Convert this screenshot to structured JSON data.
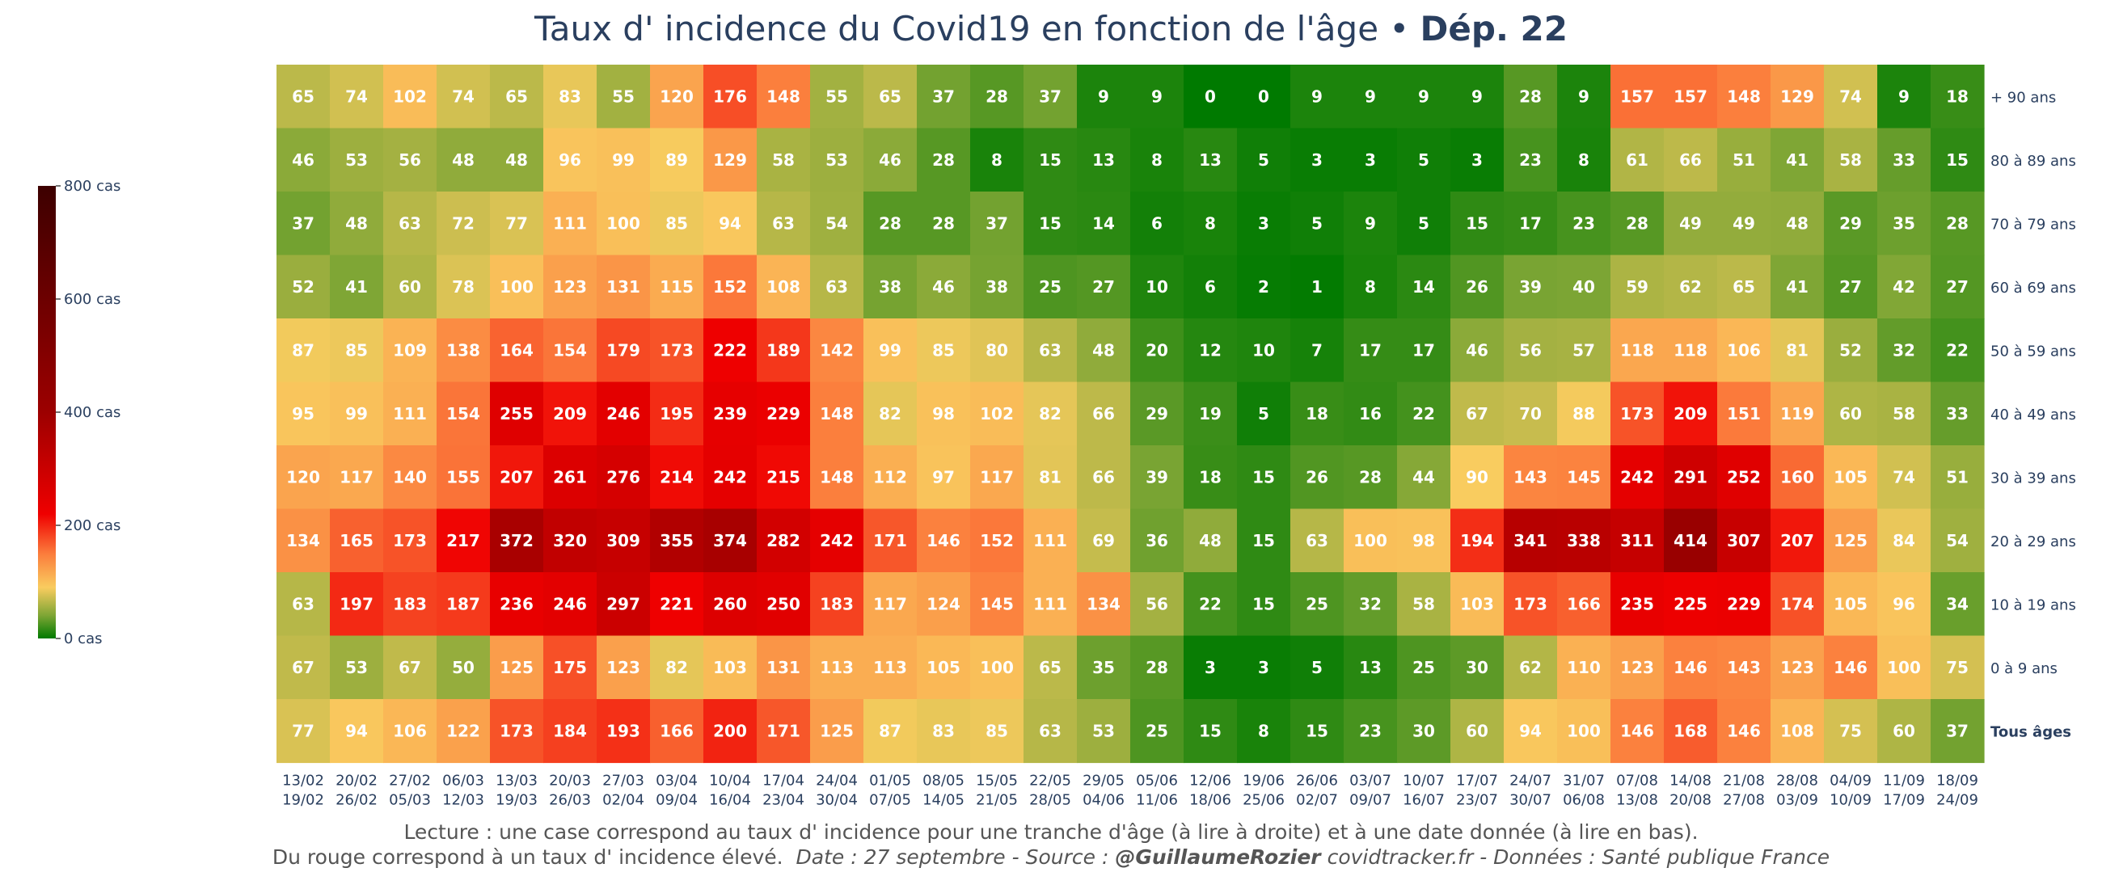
{
  "title": {
    "main": "Taux d' incidence du Covid19 en fonction de l'âge",
    "separator": "•",
    "department": "Dép. 22"
  },
  "footer": {
    "line1": "Lecture : une case correspond au taux d' incidence pour une tranche d'âge (à lire à droite) et à une date donnée (à lire en bas).",
    "line2_plain": "Du rouge correspond à un taux d' incidence élevé.",
    "line2_date": "Date : 27 septembre - Source :",
    "line2_author": "@GuillaumeRozier",
    "line2_rest": "covidtracker.fr - Données : Santé publique France"
  },
  "colors": {
    "scale_0": "#007a00",
    "scale_mid_green": "#7ca534",
    "scale_yellow": "#f9cc5f",
    "scale_orange": "#fb7c3c",
    "scale_red": "#ef0000",
    "scale_dark_red": "#9c0000",
    "scale_max": "#3d0000",
    "cell_text": "#ffffff",
    "axis_text": "#2a3f5f"
  },
  "chart_data": {
    "type": "heatmap",
    "title": "Taux d' incidence du Covid19 en fonction de l'âge • Dép. 22",
    "x_labels": [
      [
        "13/02",
        "19/02"
      ],
      [
        "20/02",
        "26/02"
      ],
      [
        "27/02",
        "05/03"
      ],
      [
        "06/03",
        "12/03"
      ],
      [
        "13/03",
        "19/03"
      ],
      [
        "20/03",
        "26/03"
      ],
      [
        "27/03",
        "02/04"
      ],
      [
        "03/04",
        "09/04"
      ],
      [
        "10/04",
        "16/04"
      ],
      [
        "17/04",
        "23/04"
      ],
      [
        "24/04",
        "30/04"
      ],
      [
        "01/05",
        "07/05"
      ],
      [
        "08/05",
        "14/05"
      ],
      [
        "15/05",
        "21/05"
      ],
      [
        "22/05",
        "28/05"
      ],
      [
        "29/05",
        "04/06"
      ],
      [
        "05/06",
        "11/06"
      ],
      [
        "12/06",
        "18/06"
      ],
      [
        "19/06",
        "25/06"
      ],
      [
        "26/06",
        "02/07"
      ],
      [
        "03/07",
        "09/07"
      ],
      [
        "10/07",
        "16/07"
      ],
      [
        "17/07",
        "23/07"
      ],
      [
        "24/07",
        "30/07"
      ],
      [
        "31/07",
        "06/08"
      ],
      [
        "07/08",
        "13/08"
      ],
      [
        "14/08",
        "20/08"
      ],
      [
        "21/08",
        "27/08"
      ],
      [
        "28/08",
        "03/09"
      ],
      [
        "04/09",
        "10/09"
      ],
      [
        "11/09",
        "17/09"
      ],
      [
        "18/09",
        "24/09"
      ]
    ],
    "y_labels": [
      "+ 90 ans",
      "80 à 89 ans",
      "70 à 79 ans",
      "60 à 69 ans",
      "50 à 59 ans",
      "40 à 49 ans",
      "30 à 39 ans",
      "20 à 29 ans",
      "10 à 19 ans",
      "0 à 9 ans",
      "Tous âges"
    ],
    "bold_row": "Tous âges",
    "values": [
      [
        65,
        74,
        102,
        74,
        65,
        83,
        55,
        120,
        176,
        148,
        55,
        65,
        37,
        28,
        37,
        9,
        9,
        0,
        0,
        9,
        9,
        9,
        9,
        28,
        9,
        157,
        157,
        148,
        129,
        74,
        9,
        18
      ],
      [
        46,
        53,
        56,
        48,
        48,
        96,
        99,
        89,
        129,
        58,
        53,
        46,
        28,
        8,
        15,
        13,
        8,
        13,
        5,
        3,
        3,
        5,
        3,
        23,
        8,
        61,
        66,
        51,
        41,
        58,
        33,
        15
      ],
      [
        37,
        48,
        63,
        72,
        77,
        111,
        100,
        85,
        94,
        63,
        54,
        28,
        28,
        37,
        15,
        14,
        6,
        8,
        3,
        5,
        9,
        5,
        15,
        17,
        23,
        28,
        49,
        49,
        48,
        29,
        35,
        28
      ],
      [
        52,
        41,
        60,
        78,
        100,
        123,
        131,
        115,
        152,
        108,
        63,
        38,
        46,
        38,
        25,
        27,
        10,
        6,
        2,
        1,
        8,
        14,
        26,
        39,
        40,
        59,
        62,
        65,
        41,
        27,
        42,
        27
      ],
      [
        87,
        85,
        109,
        138,
        164,
        154,
        179,
        173,
        222,
        189,
        142,
        99,
        85,
        80,
        63,
        48,
        20,
        12,
        10,
        7,
        17,
        17,
        46,
        56,
        57,
        118,
        118,
        106,
        81,
        52,
        32,
        22
      ],
      [
        95,
        99,
        111,
        154,
        255,
        209,
        246,
        195,
        239,
        229,
        148,
        82,
        98,
        102,
        82,
        66,
        29,
        19,
        5,
        18,
        16,
        22,
        67,
        70,
        88,
        173,
        209,
        151,
        119,
        60,
        58,
        33
      ],
      [
        120,
        117,
        140,
        155,
        207,
        261,
        276,
        214,
        242,
        215,
        148,
        112,
        97,
        117,
        81,
        66,
        39,
        18,
        15,
        26,
        28,
        44,
        90,
        143,
        145,
        242,
        291,
        252,
        160,
        105,
        74,
        51
      ],
      [
        134,
        165,
        173,
        217,
        372,
        320,
        309,
        355,
        374,
        282,
        242,
        171,
        146,
        152,
        111,
        69,
        36,
        48,
        15,
        63,
        100,
        98,
        194,
        341,
        338,
        311,
        414,
        307,
        207,
        125,
        84,
        54
      ],
      [
        63,
        197,
        183,
        187,
        236,
        246,
        297,
        221,
        260,
        250,
        183,
        117,
        124,
        145,
        111,
        134,
        56,
        22,
        15,
        25,
        32,
        58,
        103,
        173,
        166,
        235,
        225,
        229,
        174,
        105,
        96,
        34
      ],
      [
        67,
        53,
        67,
        50,
        125,
        175,
        123,
        82,
        103,
        131,
        113,
        113,
        105,
        100,
        65,
        35,
        28,
        3,
        3,
        5,
        13,
        25,
        30,
        62,
        110,
        123,
        146,
        143,
        123,
        146,
        100,
        75
      ],
      [
        77,
        94,
        106,
        122,
        173,
        184,
        193,
        166,
        200,
        171,
        125,
        87,
        83,
        85,
        63,
        53,
        25,
        15,
        8,
        15,
        23,
        30,
        60,
        94,
        100,
        146,
        168,
        146,
        108,
        75,
        60,
        37
      ]
    ],
    "colorbar": {
      "range": [
        0,
        800
      ],
      "ticks": [
        {
          "value": 0,
          "label": "0 cas"
        },
        {
          "value": 200,
          "label": "200 cas"
        },
        {
          "value": 400,
          "label": "400 cas"
        },
        {
          "value": 600,
          "label": "600 cas"
        },
        {
          "value": 800,
          "label": "800 cas"
        }
      ]
    }
  }
}
